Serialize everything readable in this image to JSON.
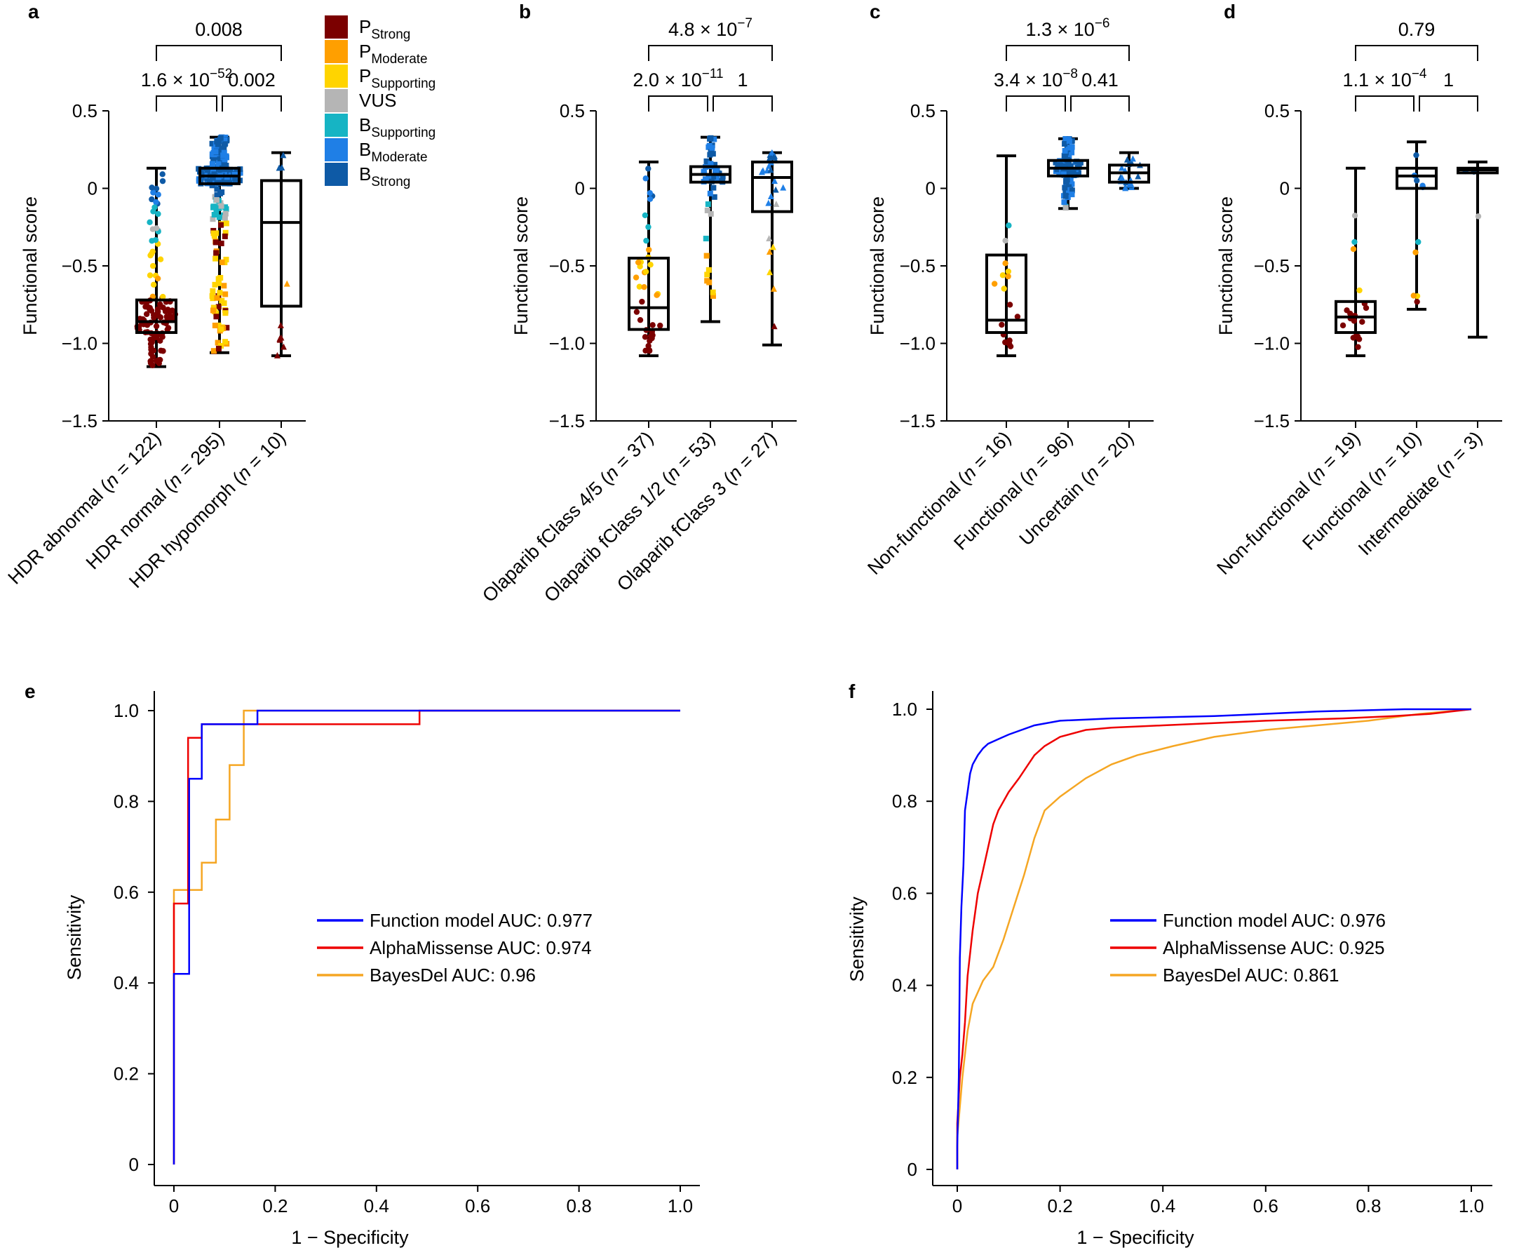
{
  "colors": {
    "P_Strong": "#7b0000",
    "P_Moderate": "#ff9f00",
    "P_Supporting": "#ffd400",
    "VUS": "#b5b5b5",
    "B_Supporting": "#16b4c4",
    "B_Moderate": "#1f7fe6",
    "B_Strong": "#0e5aa6",
    "Function model": "#0000ff",
    "AlphaMissense": "#ee0000",
    "BayesDel": "#f5a623"
  },
  "legend": [
    {
      "key": "P_Strong",
      "main": "P",
      "sub": "Strong"
    },
    {
      "key": "P_Moderate",
      "main": "P",
      "sub": "Moderate"
    },
    {
      "key": "P_Supporting",
      "main": "P",
      "sub": "Supporting"
    },
    {
      "key": "VUS",
      "main": "VUS",
      "sub": ""
    },
    {
      "key": "B_Supporting",
      "main": "B",
      "sub": "Supporting"
    },
    {
      "key": "B_Moderate",
      "main": "B",
      "sub": "Moderate"
    },
    {
      "key": "B_Strong",
      "main": "B",
      "sub": "Strong"
    }
  ],
  "chart_data": [
    {
      "type": "box",
      "panel": "a",
      "ylabel": "Functional score",
      "ylim": [
        -1.5,
        0.5
      ],
      "yticks": [
        0.5,
        0,
        -0.5,
        -1.0,
        -1.5
      ],
      "ytick_labels": [
        "0.5",
        "0",
        "−0.5",
        "−1.0",
        "−1.5"
      ],
      "groups": [
        {
          "label": "HDR abnormal (",
          "n": "122",
          "suffix": ")",
          "q1": -0.93,
          "median": -0.86,
          "q3": -0.72,
          "min": -1.15,
          "max": 0.13
        },
        {
          "label": "HDR normal (",
          "n": "295",
          "suffix": ")",
          "q1": 0.03,
          "median": 0.08,
          "q3": 0.13,
          "min": -1.06,
          "max": 0.33
        },
        {
          "label": "HDR hypomorph (",
          "n": "10",
          "suffix": ")",
          "q1": -0.76,
          "median": -0.22,
          "q3": 0.05,
          "min": -1.08,
          "max": 0.23
        }
      ],
      "pvalues": [
        {
          "pair": [
            0,
            1
          ],
          "level": 1,
          "mant": "1.6 × 10",
          "exp": "−52"
        },
        {
          "pair": [
            1,
            2
          ],
          "level": 1,
          "mant": "0.002",
          "exp": ""
        },
        {
          "pair": [
            0,
            2
          ],
          "level": 2,
          "mant": "0.008",
          "exp": ""
        }
      ]
    },
    {
      "type": "box",
      "panel": "b",
      "ylabel": "Functional score",
      "ylim": [
        -1.5,
        0.5
      ],
      "yticks": [
        0.5,
        0,
        -0.5,
        -1.0,
        -1.5
      ],
      "ytick_labels": [
        "0.5",
        "0",
        "−0.5",
        "−1.0",
        "−1.5"
      ],
      "groups": [
        {
          "label": "Olaparib fClass 4/5 (",
          "n": "37",
          "suffix": ")",
          "q1": -0.91,
          "median": -0.77,
          "q3": -0.45,
          "min": -1.08,
          "max": 0.17
        },
        {
          "label": "Olaparib fClass 1/2 (",
          "n": "53",
          "suffix": ")",
          "q1": 0.04,
          "median": 0.09,
          "q3": 0.14,
          "min": -0.86,
          "max": 0.33
        },
        {
          "label": "Olaparib fClass 3 (",
          "n": "27",
          "suffix": ")",
          "q1": -0.15,
          "median": 0.07,
          "q3": 0.17,
          "min": -1.01,
          "max": 0.23
        }
      ],
      "pvalues": [
        {
          "pair": [
            0,
            1
          ],
          "level": 1,
          "mant": "2.0 × 10",
          "exp": "−11"
        },
        {
          "pair": [
            1,
            2
          ],
          "level": 1,
          "mant": "1",
          "exp": ""
        },
        {
          "pair": [
            0,
            2
          ],
          "level": 2,
          "mant": "4.8 × 10",
          "exp": "−7"
        }
      ]
    },
    {
      "type": "box",
      "panel": "c",
      "ylabel": "Functional score",
      "ylim": [
        -1.5,
        0.5
      ],
      "yticks": [
        0.5,
        0,
        -0.5,
        -1.0,
        -1.5
      ],
      "ytick_labels": [
        "0.5",
        "0",
        "−0.5",
        "−1.0",
        "−1.5"
      ],
      "groups": [
        {
          "label": "Non-functional (",
          "n": "16",
          "suffix": ")",
          "q1": -0.93,
          "median": -0.85,
          "q3": -0.43,
          "min": -1.08,
          "max": 0.21
        },
        {
          "label": "Functional (",
          "n": "96",
          "suffix": ")",
          "q1": 0.08,
          "median": 0.13,
          "q3": 0.18,
          "min": -0.13,
          "max": 0.32
        },
        {
          "label": "Uncertain (",
          "n": "20",
          "suffix": ")",
          "q1": 0.04,
          "median": 0.1,
          "q3": 0.15,
          "min": 0.0,
          "max": 0.23
        }
      ],
      "pvalues": [
        {
          "pair": [
            0,
            1
          ],
          "level": 1,
          "mant": "3.4 × 10",
          "exp": "−8"
        },
        {
          "pair": [
            1,
            2
          ],
          "level": 1,
          "mant": "0.41",
          "exp": ""
        },
        {
          "pair": [
            0,
            2
          ],
          "level": 2,
          "mant": "1.3 × 10",
          "exp": "−6"
        }
      ]
    },
    {
      "type": "box",
      "panel": "d",
      "ylabel": "Functional score",
      "ylim": [
        -1.5,
        0.5
      ],
      "yticks": [
        0.5,
        0,
        -0.5,
        -1.0,
        -1.5
      ],
      "ytick_labels": [
        "0.5",
        "0",
        "−0.5",
        "−1.0",
        "−1.5"
      ],
      "groups": [
        {
          "label": "Non-functional (",
          "n": "19",
          "suffix": ")",
          "q1": -0.93,
          "median": -0.83,
          "q3": -0.73,
          "min": -1.08,
          "max": 0.13
        },
        {
          "label": "Functional (",
          "n": "10",
          "suffix": ")",
          "q1": 0.0,
          "median": 0.08,
          "q3": 0.13,
          "min": -0.78,
          "max": 0.3
        },
        {
          "label": "Intermediate (",
          "n": "3",
          "suffix": ")",
          "q1": 0.1,
          "median": 0.12,
          "q3": 0.13,
          "min": -0.96,
          "max": 0.17
        }
      ],
      "pvalues": [
        {
          "pair": [
            0,
            1
          ],
          "level": 1,
          "mant": "1.1 × 10",
          "exp": "−4"
        },
        {
          "pair": [
            1,
            2
          ],
          "level": 1,
          "mant": "1",
          "exp": ""
        },
        {
          "pair": [
            0,
            2
          ],
          "level": 2,
          "mant": "0.79",
          "exp": ""
        }
      ]
    },
    {
      "type": "line",
      "panel": "e",
      "xlabel": "1 − Specificity",
      "ylabel": "Sensitivity",
      "xlim": [
        0,
        1
      ],
      "ylim": [
        0,
        1
      ],
      "xticks": [
        "0",
        "0.2",
        "0.4",
        "0.6",
        "0.8",
        "1.0"
      ],
      "yticks": [
        "0",
        "0.2",
        "0.4",
        "0.6",
        "0.8",
        "1.0"
      ],
      "series": [
        {
          "name": "Function model",
          "legend": "Function model AUC: 0.977",
          "points": [
            [
              0,
              0
            ],
            [
              0,
              0.42
            ],
            [
              0.03,
              0.42
            ],
            [
              0.03,
              0.85
            ],
            [
              0.055,
              0.85
            ],
            [
              0.055,
              0.97
            ],
            [
              0.165,
              0.97
            ],
            [
              0.165,
              1.0
            ],
            [
              1.0,
              1.0
            ]
          ]
        },
        {
          "name": "AlphaMissense",
          "legend": "AlphaMissense AUC: 0.974",
          "points": [
            [
              0,
              0
            ],
            [
              0,
              0.575
            ],
            [
              0.028,
              0.575
            ],
            [
              0.028,
              0.94
            ],
            [
              0.055,
              0.94
            ],
            [
              0.055,
              0.97
            ],
            [
              0.485,
              0.97
            ],
            [
              0.485,
              1.0
            ],
            [
              1.0,
              1.0
            ]
          ]
        },
        {
          "name": "BayesDel",
          "legend": "BayesDel AUC: 0.96",
          "points": [
            [
              0,
              0
            ],
            [
              0,
              0.605
            ],
            [
              0.055,
              0.605
            ],
            [
              0.055,
              0.665
            ],
            [
              0.083,
              0.665
            ],
            [
              0.083,
              0.76
            ],
            [
              0.11,
              0.76
            ],
            [
              0.11,
              0.88
            ],
            [
              0.138,
              0.88
            ],
            [
              0.138,
              1.0
            ],
            [
              1.0,
              1.0
            ]
          ]
        }
      ]
    },
    {
      "type": "line",
      "panel": "f",
      "xlabel": "1 − Specificity",
      "ylabel": "Sensitivity",
      "xlim": [
        0,
        1
      ],
      "ylim": [
        0,
        1
      ],
      "xticks": [
        "0",
        "0.2",
        "0.4",
        "0.6",
        "0.8",
        "1.0"
      ],
      "yticks": [
        "0",
        "0.2",
        "0.4",
        "0.6",
        "0.8",
        "1.0"
      ],
      "series": [
        {
          "name": "Function model",
          "legend": "Function model AUC: 0.976",
          "points": [
            [
              0,
              0
            ],
            [
              0,
              0.05
            ],
            [
              0.003,
              0.2
            ],
            [
              0.005,
              0.46
            ],
            [
              0.008,
              0.57
            ],
            [
              0.012,
              0.66
            ],
            [
              0.015,
              0.78
            ],
            [
              0.02,
              0.82
            ],
            [
              0.025,
              0.86
            ],
            [
              0.03,
              0.88
            ],
            [
              0.04,
              0.9
            ],
            [
              0.05,
              0.915
            ],
            [
              0.06,
              0.925
            ],
            [
              0.08,
              0.935
            ],
            [
              0.1,
              0.945
            ],
            [
              0.15,
              0.965
            ],
            [
              0.2,
              0.975
            ],
            [
              0.3,
              0.98
            ],
            [
              0.5,
              0.985
            ],
            [
              0.7,
              0.995
            ],
            [
              0.87,
              1.0
            ],
            [
              1.0,
              1.0
            ]
          ]
        },
        {
          "name": "AlphaMissense",
          "legend": "AlphaMissense AUC: 0.925",
          "points": [
            [
              0,
              0
            ],
            [
              0,
              0.1
            ],
            [
              0.005,
              0.2
            ],
            [
              0.01,
              0.25
            ],
            [
              0.015,
              0.32
            ],
            [
              0.02,
              0.42
            ],
            [
              0.03,
              0.52
            ],
            [
              0.04,
              0.6
            ],
            [
              0.05,
              0.65
            ],
            [
              0.06,
              0.7
            ],
            [
              0.07,
              0.75
            ],
            [
              0.08,
              0.78
            ],
            [
              0.1,
              0.82
            ],
            [
              0.12,
              0.85
            ],
            [
              0.15,
              0.9
            ],
            [
              0.17,
              0.92
            ],
            [
              0.2,
              0.94
            ],
            [
              0.25,
              0.955
            ],
            [
              0.3,
              0.96
            ],
            [
              0.4,
              0.965
            ],
            [
              0.5,
              0.97
            ],
            [
              0.6,
              0.975
            ],
            [
              0.75,
              0.98
            ],
            [
              0.85,
              0.985
            ],
            [
              0.92,
              0.99
            ],
            [
              1.0,
              1.0
            ]
          ]
        },
        {
          "name": "BayesDel",
          "legend": "BayesDel AUC: 0.861",
          "points": [
            [
              0,
              0
            ],
            [
              0,
              0.07
            ],
            [
              0.01,
              0.2
            ],
            [
              0.02,
              0.3
            ],
            [
              0.03,
              0.36
            ],
            [
              0.05,
              0.41
            ],
            [
              0.07,
              0.44
            ],
            [
              0.09,
              0.5
            ],
            [
              0.11,
              0.57
            ],
            [
              0.13,
              0.64
            ],
            [
              0.15,
              0.72
            ],
            [
              0.17,
              0.78
            ],
            [
              0.2,
              0.81
            ],
            [
              0.25,
              0.85
            ],
            [
              0.3,
              0.88
            ],
            [
              0.35,
              0.9
            ],
            [
              0.42,
              0.92
            ],
            [
              0.5,
              0.94
            ],
            [
              0.6,
              0.955
            ],
            [
              0.7,
              0.965
            ],
            [
              0.8,
              0.975
            ],
            [
              0.9,
              0.99
            ],
            [
              1.0,
              1.0
            ]
          ]
        }
      ]
    }
  ]
}
